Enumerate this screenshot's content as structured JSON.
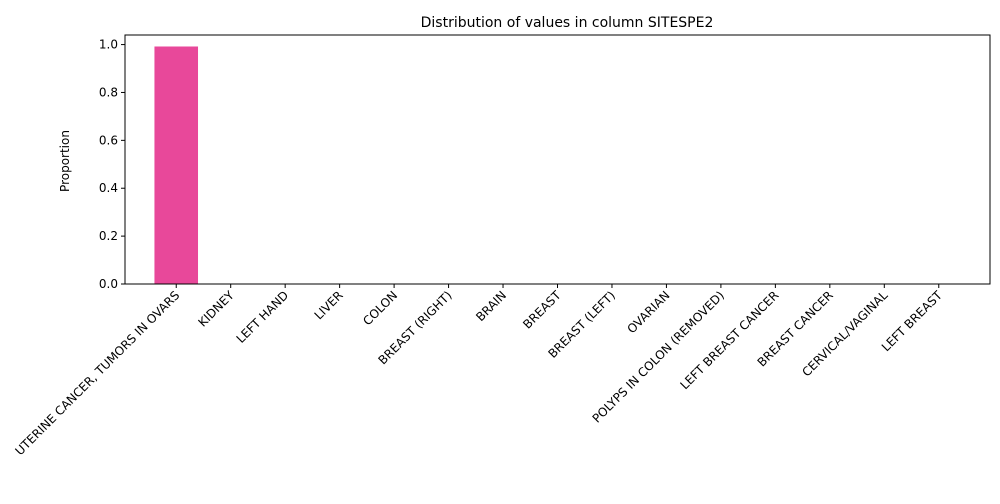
{
  "chart_data": {
    "type": "bar",
    "title": "Distribution of values in column SITESPE2",
    "xlabel": "",
    "ylabel": "Proportion",
    "ylim": [
      0,
      1.04
    ],
    "yticks": [
      0.0,
      0.2,
      0.4,
      0.6,
      0.8,
      1.0
    ],
    "ytick_labels": [
      "0.0",
      "0.2",
      "0.4",
      "0.6",
      "0.8",
      "1.0"
    ],
    "categories": [
      "UTERINE CANCER, TUMORS IN OVARS",
      "KIDNEY",
      "LEFT HAND",
      "LIVER",
      "COLON",
      "BREAST (RIGHT)",
      "BRAIN",
      "BREAST",
      "BREAST (LEFT)",
      "OVARIAN",
      "POLYPS IN COLON (REMOVED)",
      "LEFT BREAST CANCER",
      "BREAST CANCER",
      "CERVICAL/VAGINAL",
      "LEFT BREAST"
    ],
    "values": [
      0.992,
      0.0005,
      0.0005,
      0.0005,
      0.0005,
      0.0005,
      0.0005,
      0.0005,
      0.0005,
      0.0005,
      0.0005,
      0.0005,
      0.0005,
      0.0005,
      0.0005
    ],
    "bar_color": "#e8489a",
    "grid": false,
    "legend": "none"
  }
}
